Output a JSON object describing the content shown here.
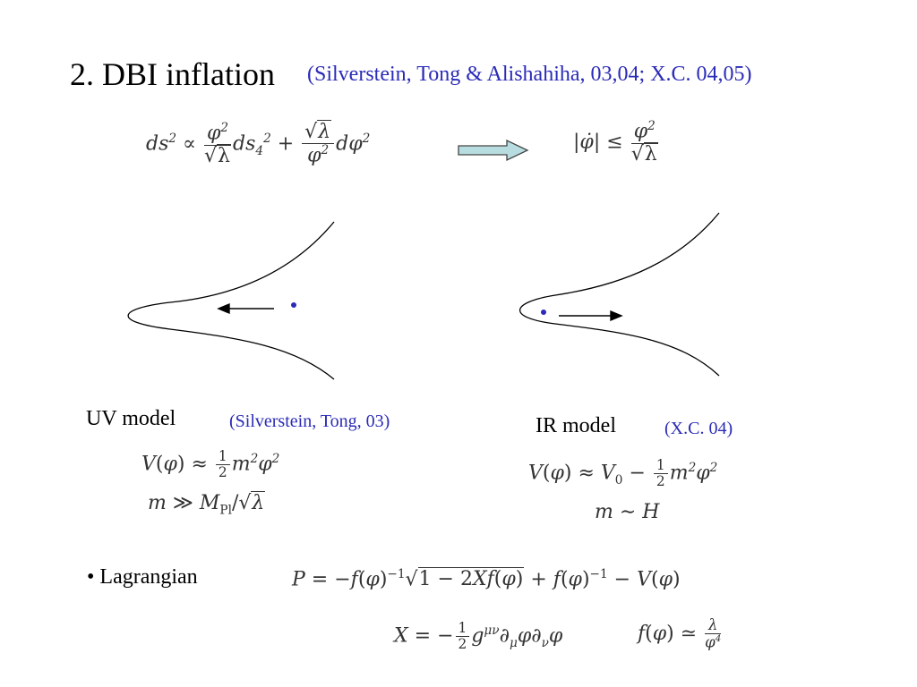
{
  "slide": {
    "title": "2. DBI inflation",
    "title_citation": "(Silverstein, Tong & Alishahiha, 03,04; X.C. 04,05)"
  },
  "uv_model": {
    "label": "UV model",
    "citation": "(Silverstein, Tong, 03)"
  },
  "ir_model": {
    "label": "IR model",
    "citation": "(X.C. 04)"
  },
  "lagrangian": {
    "label": "• Lagrangian"
  },
  "colors": {
    "citation": "#2b2bb8",
    "arrow_fill": "#b8dde0",
    "dot": "#2b2bb8"
  }
}
